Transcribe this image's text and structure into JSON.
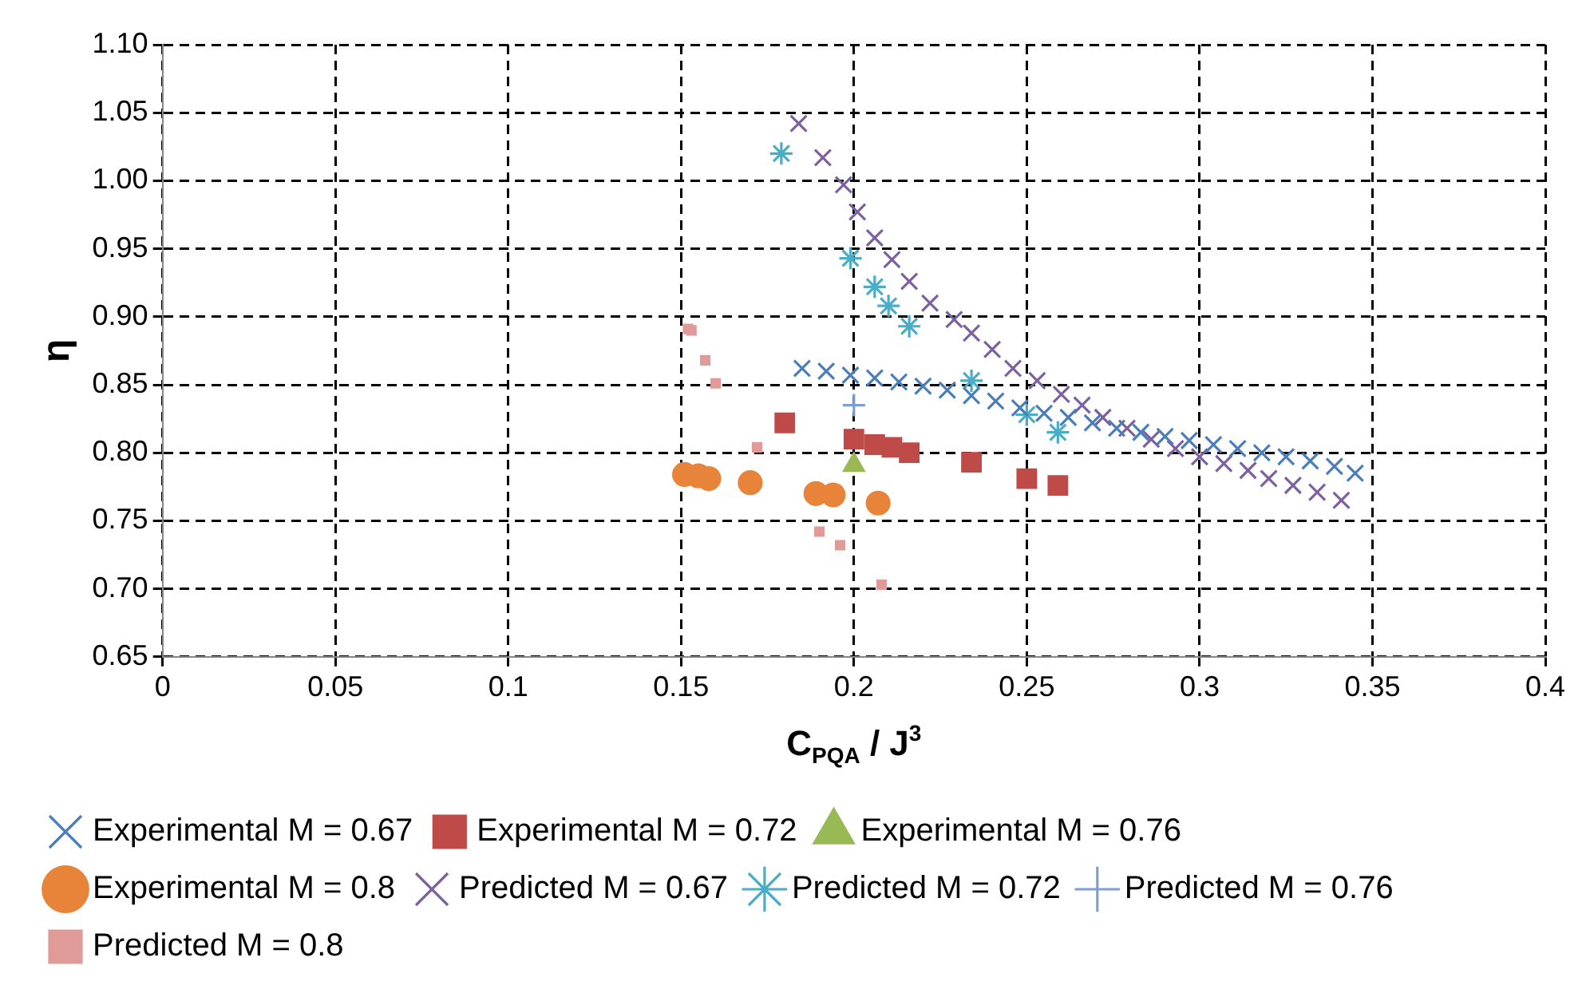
{
  "chart_data": {
    "type": "scatter",
    "xlabel": "C$_{PQA}$ / J$^{3}$",
    "ylabel": "η",
    "xlim": [
      0,
      0.4
    ],
    "xticks": [
      0,
      0.05,
      0.1,
      0.15,
      0.2,
      0.25,
      0.3,
      0.35,
      0.4
    ],
    "ylim": [
      0.65,
      1.1
    ],
    "yticks": [
      {
        "value": 0.65,
        "label": "0.65"
      },
      {
        "value": 0.7,
        "label": "0.70"
      },
      {
        "value": 0.75,
        "label": "0.75"
      },
      {
        "value": 0.8,
        "label": "0.80"
      },
      {
        "value": 0.85,
        "label": "0.85"
      },
      {
        "value": 0.9,
        "label": "0.90"
      },
      {
        "value": 0.95,
        "label": "0.95"
      },
      {
        "value": 1.0,
        "label": "1.00"
      },
      {
        "value": 1.05,
        "label": "1.05"
      },
      {
        "value": 1.1,
        "label": "1.10"
      }
    ],
    "grid": true,
    "legend": "bottom",
    "series": [
      {
        "name": "Experimental M = 0.67",
        "color": "#4a7ebb",
        "marker": "cross",
        "x": [
          0.185,
          0.192,
          0.199,
          0.206,
          0.213,
          0.22,
          0.227,
          0.234,
          0.241,
          0.248,
          0.255,
          0.262,
          0.269,
          0.276,
          0.283,
          0.29,
          0.297,
          0.304,
          0.311,
          0.318,
          0.325,
          0.332,
          0.339,
          0.345
        ],
        "values": [
          0.862,
          0.86,
          0.857,
          0.855,
          0.852,
          0.849,
          0.846,
          0.842,
          0.838,
          0.833,
          0.829,
          0.826,
          0.822,
          0.818,
          0.815,
          0.812,
          0.809,
          0.806,
          0.803,
          0.8,
          0.797,
          0.794,
          0.79,
          0.785
        ]
      },
      {
        "name": "Experimental M = 0.72",
        "color": "#be4b48",
        "marker": "square",
        "x": [
          0.18,
          0.2,
          0.206,
          0.211,
          0.216,
          0.234,
          0.25,
          0.259
        ],
        "values": [
          0.822,
          0.81,
          0.806,
          0.804,
          0.8,
          0.793,
          0.781,
          0.776
        ]
      },
      {
        "name": "Experimental M = 0.76",
        "color": "#98b954",
        "marker": "triangle",
        "x": [
          0.2
        ],
        "values": [
          0.791
        ]
      },
      {
        "name": "Experimental M = 0.8",
        "color": "#e8843a",
        "marker": "circle",
        "x": [
          0.151,
          0.155,
          0.158,
          0.17,
          0.189,
          0.194,
          0.207
        ],
        "values": [
          0.784,
          0.783,
          0.781,
          0.778,
          0.77,
          0.769,
          0.763
        ]
      },
      {
        "name": "Predicted M = 0.67",
        "color": "#7d60a0",
        "marker": "cross",
        "x": [
          0.184,
          0.191,
          0.197,
          0.201,
          0.206,
          0.211,
          0.216,
          0.222,
          0.229,
          0.234,
          0.24,
          0.246,
          0.253,
          0.26,
          0.266,
          0.272,
          0.279,
          0.286,
          0.293,
          0.3,
          0.307,
          0.314,
          0.32,
          0.327,
          0.334,
          0.341
        ],
        "values": [
          1.042,
          1.017,
          0.997,
          0.977,
          0.958,
          0.942,
          0.926,
          0.91,
          0.898,
          0.888,
          0.876,
          0.862,
          0.853,
          0.843,
          0.835,
          0.826,
          0.818,
          0.81,
          0.803,
          0.797,
          0.792,
          0.787,
          0.781,
          0.776,
          0.771,
          0.765
        ]
      },
      {
        "name": "Predicted M = 0.72",
        "color": "#4bacc6",
        "x": [
          0.179,
          0.199,
          0.206,
          0.21,
          0.216,
          0.234,
          0.25,
          0.259
        ],
        "values": [
          1.02,
          0.943,
          0.922,
          0.908,
          0.893,
          0.853,
          0.828,
          0.815
        ]
      },
      {
        "name": "Predicted M = 0.76",
        "color": "#7f9fd0",
        "x": [
          0.2
        ],
        "values": [
          0.835
        ]
      },
      {
        "name": "Predicted M = 0.8",
        "color": "#e09a98",
        "x": [
          0.152,
          0.153,
          0.157,
          0.16,
          0.172,
          0.19,
          0.196,
          0.208
        ],
        "values": [
          0.891,
          0.89,
          0.868,
          0.851,
          0.804,
          0.742,
          0.732,
          0.703
        ]
      }
    ]
  }
}
